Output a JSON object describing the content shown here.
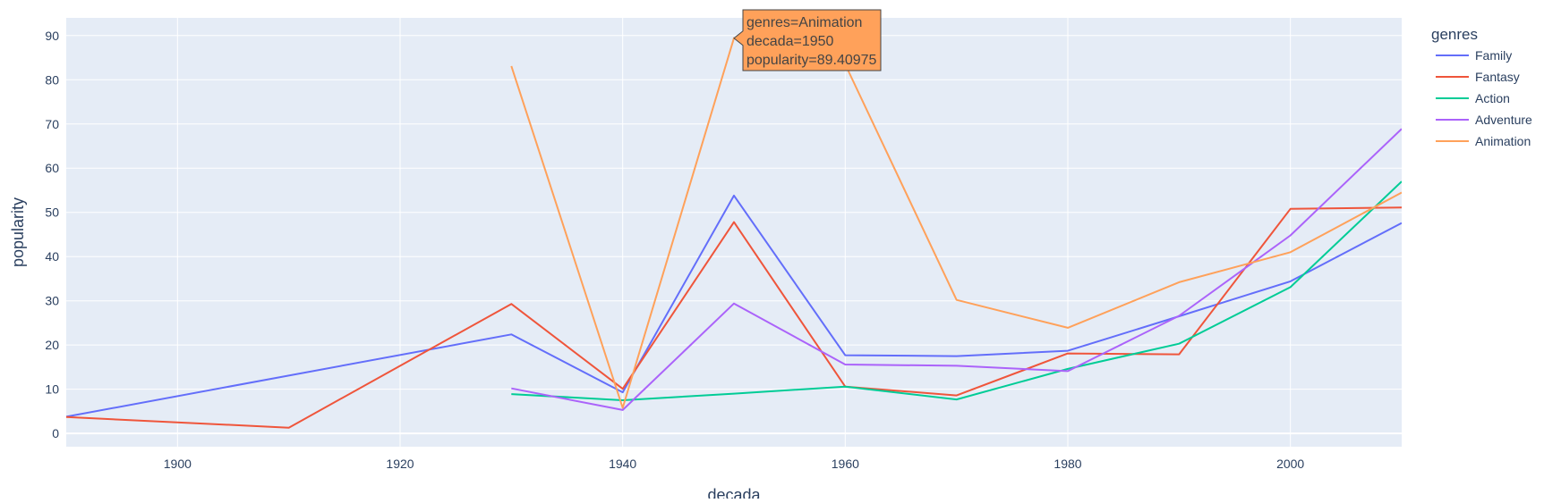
{
  "chart_data": {
    "type": "line",
    "xlabel": "decada",
    "ylabel": "popularity",
    "xlim": [
      1890,
      2010
    ],
    "ylim": [
      -3,
      94
    ],
    "x_ticks": [
      1900,
      1920,
      1940,
      1960,
      1980,
      2000
    ],
    "y_ticks": [
      0,
      10,
      20,
      30,
      40,
      50,
      60,
      70,
      80,
      90
    ],
    "grid": true,
    "legend": {
      "title": "genres",
      "placement": "right"
    },
    "series": [
      {
        "name": "Family",
        "color": "#636efa",
        "x": [
          1890,
          1930,
          1940,
          1950,
          1960,
          1970,
          1980,
          1990,
          2000,
          2010
        ],
        "y": [
          3.8,
          22.4,
          9.3,
          53.8,
          17.7,
          17.5,
          18.7,
          26.5,
          34.4,
          47.6
        ]
      },
      {
        "name": "Fantasy",
        "color": "#ef553b",
        "x": [
          1890,
          1910,
          1930,
          1940,
          1950,
          1960,
          1970,
          1980,
          1990,
          2000,
          2010
        ],
        "y": [
          3.7,
          1.3,
          29.3,
          10.1,
          47.8,
          10.6,
          8.6,
          18.1,
          17.9,
          50.8,
          51.1
        ]
      },
      {
        "name": "Action",
        "color": "#00cc96",
        "x": [
          1930,
          1940,
          1950,
          1960,
          1970,
          1980,
          1990,
          2000,
          2010
        ],
        "y": [
          8.9,
          7.5,
          9.0,
          10.6,
          7.7,
          14.6,
          20.3,
          33.1,
          57.0
        ]
      },
      {
        "name": "Adventure",
        "color": "#ab63fa",
        "x": [
          1930,
          1940,
          1950,
          1960,
          1970,
          1980,
          1990,
          2000,
          2010
        ],
        "y": [
          10.2,
          5.3,
          29.4,
          15.6,
          15.3,
          14.1,
          26.6,
          44.8,
          68.9
        ]
      },
      {
        "name": "Animation",
        "color": "#ffa15a",
        "x": [
          1930,
          1940,
          1950,
          1960,
          1970,
          1980,
          1990,
          2000,
          2010
        ],
        "y": [
          83.1,
          5.8,
          89.40975,
          83.5,
          30.2,
          23.9,
          34.2,
          41.0,
          54.5
        ]
      }
    ],
    "hover": {
      "series": "Animation",
      "x": 1950,
      "y": 89.40975,
      "lines": [
        "genres=Animation",
        "decada=1950",
        "popularity=89.40975"
      ]
    }
  }
}
